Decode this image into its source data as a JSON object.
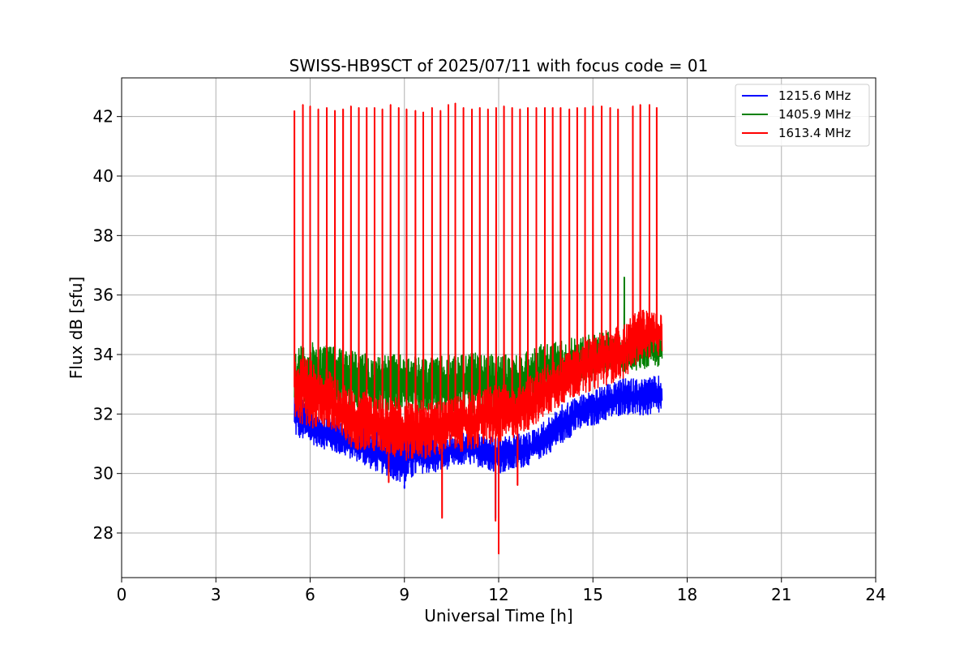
{
  "chart_data": {
    "type": "line",
    "title": "SWISS-HB9SCT of 2025/07/11 with focus code = 01",
    "xlabel": "Universal Time [h]",
    "ylabel": "Flux dB [sfu]",
    "xlim": [
      0,
      24
    ],
    "ylim": [
      26.5,
      43.3
    ],
    "xticks": [
      0,
      3,
      6,
      9,
      12,
      15,
      18,
      21,
      24
    ],
    "yticks": [
      28,
      30,
      32,
      34,
      36,
      38,
      40,
      42
    ],
    "grid": true,
    "legend_position": "top-right",
    "series": [
      {
        "name": "1215.6 MHz",
        "color": "#0000ff",
        "start": 5.5,
        "end": 17.2,
        "envelope": [
          [
            5.5,
            31.2,
            33.0
          ],
          [
            6.0,
            31.0,
            32.2
          ],
          [
            6.5,
            30.8,
            32.0
          ],
          [
            7.0,
            30.6,
            31.8
          ],
          [
            7.5,
            30.4,
            31.6
          ],
          [
            8.0,
            30.1,
            31.5
          ],
          [
            8.5,
            29.9,
            31.3
          ],
          [
            9.0,
            29.6,
            31.5
          ],
          [
            9.5,
            30.0,
            31.4
          ],
          [
            10.0,
            30.0,
            31.2
          ],
          [
            10.5,
            30.2,
            31.3
          ],
          [
            11.0,
            30.3,
            31.4
          ],
          [
            11.5,
            30.2,
            31.3
          ],
          [
            12.0,
            30.0,
            31.2
          ],
          [
            12.5,
            30.1,
            31.3
          ],
          [
            13.0,
            30.3,
            31.4
          ],
          [
            13.5,
            30.6,
            31.8
          ],
          [
            14.0,
            31.0,
            32.3
          ],
          [
            14.5,
            31.4,
            32.6
          ],
          [
            15.0,
            31.6,
            32.8
          ],
          [
            15.5,
            31.8,
            33.0
          ],
          [
            16.0,
            32.0,
            33.2
          ],
          [
            16.5,
            31.9,
            33.2
          ],
          [
            17.2,
            32.0,
            33.3
          ]
        ],
        "dips": [
          [
            9.0,
            29.5
          ],
          [
            11.9,
            28.5
          ]
        ],
        "spikes": []
      },
      {
        "name": "1405.9 MHz",
        "color": "#008000",
        "start": 5.5,
        "end": 17.2,
        "envelope": [
          [
            5.5,
            32.3,
            34.2
          ],
          [
            6.0,
            32.4,
            34.4
          ],
          [
            6.5,
            32.3,
            34.4
          ],
          [
            7.0,
            32.2,
            34.3
          ],
          [
            7.5,
            32.2,
            34.1
          ],
          [
            8.0,
            32.1,
            34.0
          ],
          [
            8.5,
            32.0,
            34.0
          ],
          [
            9.0,
            32.0,
            34.0
          ],
          [
            9.5,
            32.0,
            33.9
          ],
          [
            10.0,
            31.9,
            33.9
          ],
          [
            10.5,
            32.0,
            34.0
          ],
          [
            11.0,
            32.0,
            34.1
          ],
          [
            11.5,
            32.1,
            34.0
          ],
          [
            12.0,
            32.0,
            34.0
          ],
          [
            12.5,
            32.1,
            34.0
          ],
          [
            13.0,
            32.3,
            34.2
          ],
          [
            13.5,
            32.5,
            34.4
          ],
          [
            14.0,
            32.8,
            34.5
          ],
          [
            14.5,
            33.0,
            34.6
          ],
          [
            15.0,
            33.2,
            34.7
          ],
          [
            15.5,
            33.4,
            34.8
          ],
          [
            16.0,
            33.4,
            34.6
          ],
          [
            16.5,
            33.5,
            34.6
          ],
          [
            17.2,
            33.6,
            34.8
          ]
        ],
        "dips": [],
        "spikes": [
          [
            16.0,
            36.6
          ]
        ]
      },
      {
        "name": "1613.4 MHz",
        "color": "#ff0000",
        "start": 5.5,
        "end": 17.2,
        "envelope": [
          [
            5.5,
            31.8,
            34.0
          ],
          [
            6.0,
            31.5,
            33.8
          ],
          [
            6.5,
            31.5,
            33.6
          ],
          [
            7.0,
            31.0,
            33.0
          ],
          [
            7.5,
            30.8,
            32.8
          ],
          [
            8.0,
            30.7,
            32.7
          ],
          [
            8.5,
            30.6,
            32.6
          ],
          [
            9.0,
            30.4,
            32.5
          ],
          [
            9.5,
            30.5,
            32.5
          ],
          [
            10.0,
            30.5,
            32.4
          ],
          [
            10.5,
            30.8,
            32.6
          ],
          [
            11.0,
            30.7,
            32.7
          ],
          [
            11.5,
            30.9,
            32.9
          ],
          [
            12.0,
            31.0,
            33.0
          ],
          [
            12.5,
            31.2,
            33.0
          ],
          [
            13.0,
            31.5,
            33.3
          ],
          [
            13.5,
            31.9,
            33.6
          ],
          [
            14.0,
            32.3,
            34.0
          ],
          [
            14.5,
            32.6,
            34.3
          ],
          [
            15.0,
            32.8,
            34.6
          ],
          [
            15.5,
            33.0,
            34.9
          ],
          [
            16.0,
            33.2,
            35.0
          ],
          [
            16.5,
            33.8,
            35.6
          ],
          [
            17.2,
            34.0,
            35.4
          ]
        ],
        "dips": [
          [
            8.5,
            29.7
          ],
          [
            10.2,
            28.5
          ],
          [
            11.9,
            28.4
          ],
          [
            12.0,
            27.3
          ],
          [
            12.6,
            29.6
          ]
        ],
        "spikes": [
          [
            5.5,
            42.2
          ],
          [
            5.77,
            42.4
          ],
          [
            6.0,
            42.35
          ],
          [
            6.26,
            42.25
          ],
          [
            6.53,
            42.3
          ],
          [
            6.79,
            42.2
          ],
          [
            7.05,
            42.25
          ],
          [
            7.3,
            42.35
          ],
          [
            7.55,
            42.3
          ],
          [
            7.8,
            42.3
          ],
          [
            8.05,
            42.3
          ],
          [
            8.3,
            42.25
          ],
          [
            8.56,
            42.4
          ],
          [
            8.82,
            42.3
          ],
          [
            9.07,
            42.25
          ],
          [
            9.35,
            42.2
          ],
          [
            9.6,
            42.15
          ],
          [
            9.88,
            42.3
          ],
          [
            10.15,
            42.2
          ],
          [
            10.4,
            42.4
          ],
          [
            10.62,
            42.45
          ],
          [
            10.88,
            42.3
          ],
          [
            11.15,
            42.25
          ],
          [
            11.4,
            42.3
          ],
          [
            11.66,
            42.25
          ],
          [
            11.92,
            42.3
          ],
          [
            12.17,
            42.35
          ],
          [
            12.43,
            42.3
          ],
          [
            12.68,
            42.25
          ],
          [
            12.93,
            42.3
          ],
          [
            13.2,
            42.3
          ],
          [
            13.47,
            42.3
          ],
          [
            13.72,
            42.3
          ],
          [
            13.97,
            42.3
          ],
          [
            14.25,
            42.25
          ],
          [
            14.5,
            42.3
          ],
          [
            14.75,
            42.3
          ],
          [
            15.0,
            42.35
          ],
          [
            15.28,
            42.35
          ],
          [
            15.55,
            42.3
          ],
          [
            15.8,
            42.25
          ],
          [
            16.27,
            42.35
          ],
          [
            16.51,
            42.4
          ],
          [
            16.8,
            42.4
          ],
          [
            17.03,
            42.3
          ]
        ]
      }
    ]
  }
}
